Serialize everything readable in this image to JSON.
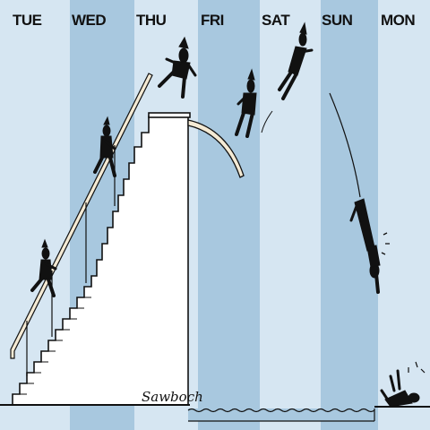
{
  "days": [
    "TUE",
    "WED",
    "THU",
    "FRI",
    "SAT",
    "SUN",
    "MON"
  ],
  "signature": "Sawboch",
  "colors": {
    "stripe_light": "#d6e6f2",
    "stripe_dark": "#a8c8df",
    "ink": "#111111",
    "paper": "#ffffff",
    "water": "#a8c8df"
  }
}
